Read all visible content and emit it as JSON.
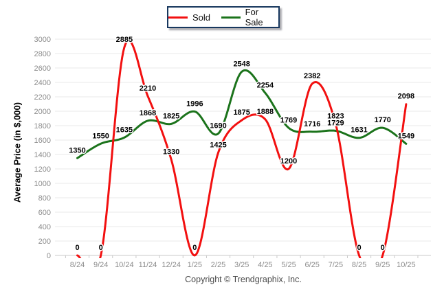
{
  "footer": {
    "copyright": "Copyright © Trendgraphix, Inc."
  },
  "theme": {
    "background": "#ffffff",
    "grid": "#e9e9e9",
    "axis": "#c9c9c9",
    "tick_text": "#8c8c8c",
    "data_label": "#000000",
    "data_label_halo": "#ffffff",
    "legend_border": "#17375e"
  },
  "chart_data": {
    "type": "line",
    "title": "",
    "xlabel": "",
    "ylabel": "Average Price (in $,000)",
    "ylim": [
      0,
      3000
    ],
    "ytick_step": 200,
    "grid": true,
    "legend_position": "top-center",
    "data_labels": true,
    "line_style": "smooth",
    "categories": [
      "8/24",
      "9/24",
      "10/24",
      "11/24",
      "12/24",
      "1/25",
      "2/25",
      "3/25",
      "4/25",
      "5/25",
      "6/25",
      "7/25",
      "8/25",
      "9/25",
      "10/25"
    ],
    "series": [
      {
        "name": "Sold",
        "color": "#f21010",
        "values": [
          0,
          0,
          2885,
          2210,
          1330,
          0,
          1425,
          1875,
          1888,
          1200,
          2382,
          1823,
          0,
          0,
          2098
        ]
      },
      {
        "name": "For Sale",
        "color": "#1b731b",
        "values": [
          1350,
          1550,
          1635,
          1868,
          1825,
          1996,
          1690,
          2548,
          2254,
          1769,
          1716,
          1729,
          1631,
          1770,
          1549
        ]
      }
    ]
  }
}
